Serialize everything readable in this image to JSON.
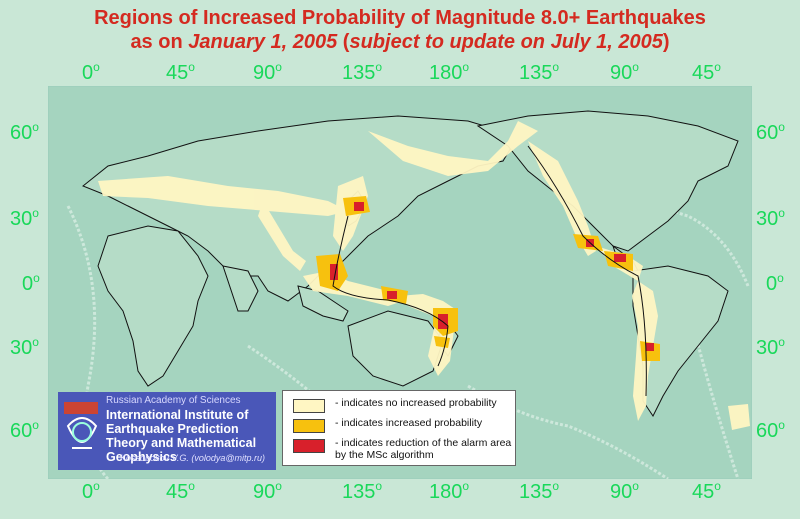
{
  "title": {
    "line1": "Regions of Increased Probability of Magnitude 8.0+ Earthquakes",
    "line2_prefix": "as on ",
    "line2_date": "January 1, 2005",
    "line2_open": " (",
    "line2_update": "subject to update on July 1, 2005",
    "line2_close": ")"
  },
  "axes": {
    "top_lon": [
      "0",
      "45",
      "90",
      "135",
      "180",
      "135",
      "90",
      "45"
    ],
    "bottom_lon": [
      "0",
      "45",
      "90",
      "135",
      "180",
      "135",
      "90",
      "45"
    ],
    "left_lat": [
      "60",
      "30",
      "0",
      "30",
      "60"
    ],
    "right_lat": [
      "60",
      "30",
      "0",
      "30",
      "60"
    ],
    "degree_symbol": "o"
  },
  "institute": {
    "academy": "Russian Academy of Sciences",
    "name": "International Institute of Earthquake Prediction Theory and Mathematical Geophysics",
    "author": "Kossobokov V.G. (volodya@mitp.ru)"
  },
  "legend": {
    "items": [
      {
        "label": "- indicates no increased probability",
        "color": "#fff6c3"
      },
      {
        "label": "- indicates increased probability",
        "color": "#f7c10e"
      },
      {
        "label": "- indicates reduction of the alarm area by the MSc algorithm",
        "color": "#d8202b"
      }
    ]
  },
  "colors": {
    "background": "#c9e7d6",
    "ocean": "#a5d4bf",
    "title": "#d42a20",
    "axis_labels": "#19d85a"
  }
}
